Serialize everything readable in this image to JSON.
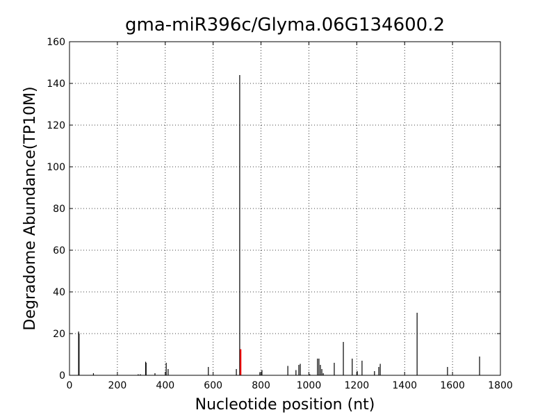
{
  "chart_data": {
    "type": "stem",
    "title": "gma-miR396c/Glyma.06G134600.2",
    "x_label": "Nucleotide position (nt)",
    "y_label": "Degradome Abundance(TP10M)",
    "xlim": [
      0,
      1800
    ],
    "xticks": [
      0,
      200,
      400,
      600,
      800,
      1000,
      1200,
      1400,
      1600,
      1800
    ],
    "ylim": [
      0,
      160
    ],
    "yticks": [
      0,
      20,
      40,
      60,
      80,
      100,
      120,
      140,
      160
    ],
    "grid": true,
    "series": [
      {
        "color": "#000000",
        "x": [
          38,
          40,
          100,
          287,
          296,
          318,
          320,
          357,
          404,
          412,
          580,
          697,
          711,
          795,
          804,
          912,
          946,
          958,
          964,
          1004,
          1036,
          1042,
          1048,
          1054,
          1060,
          1106,
          1144,
          1181,
          1202,
          1222,
          1274,
          1292,
          1298,
          1452,
          1579,
          1713
        ],
        "values": [
          21,
          20,
          1,
          0.5,
          0.5,
          6.5,
          6,
          1,
          6,
          3,
          4,
          3,
          144,
          1.5,
          2.5,
          4.5,
          2.5,
          5,
          5.5,
          0.5,
          8,
          8,
          5,
          3,
          1,
          6,
          16,
          8,
          2,
          7,
          2,
          4,
          5.5,
          30,
          4,
          9
        ]
      },
      {
        "color": "#ff0000",
        "x": [
          715
        ],
        "values": [
          12.5
        ]
      }
    ]
  }
}
